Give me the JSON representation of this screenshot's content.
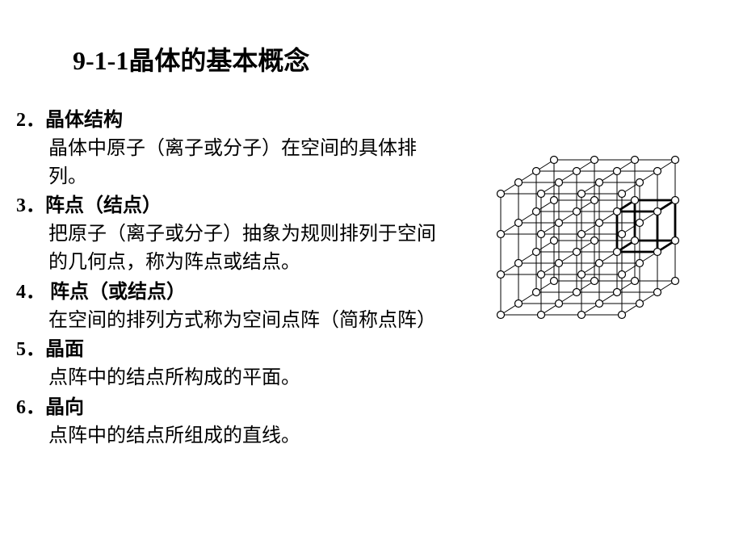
{
  "title": "9-1-1晶体的基本概念",
  "items": [
    {
      "num": "2．",
      "header": "晶体结构",
      "body": "晶体中原子（离子或分子）在空间的具体排列。"
    },
    {
      "num": "3．",
      "header": "阵点（结点）",
      "body": "把原子（离子或分子）抽象为规则排列于空间的几何点，称为阵点或结点。"
    },
    {
      "num": "4．",
      "header": " 阵点（或结点）",
      "body": "在空间的排列方式称为空间点阵（简称点阵）"
    },
    {
      "num": "5．",
      "header": "晶面",
      "body": "点阵中的结点所构成的平面。"
    },
    {
      "num": "6．",
      "header": "晶向",
      "body": "点阵中的结点所组成的直线。"
    }
  ],
  "diagram": {
    "type": "lattice",
    "grid_size": 4,
    "depth_layers": 4,
    "node_radius": 4.5,
    "line_color": "#000000",
    "node_fill": "#ffffff",
    "node_stroke": "#000000",
    "cell_size": 50,
    "depth_dx": 22,
    "depth_dy": -14,
    "highlight_stroke_width": 2.8,
    "line_stroke_width": 1,
    "highlight_cell": {
      "i": 2,
      "j": 1,
      "k": 2
    }
  },
  "colors": {
    "background": "#ffffff",
    "text": "#000000"
  },
  "typography": {
    "title_fontsize": 32,
    "body_fontsize": 24,
    "title_bold": true
  }
}
